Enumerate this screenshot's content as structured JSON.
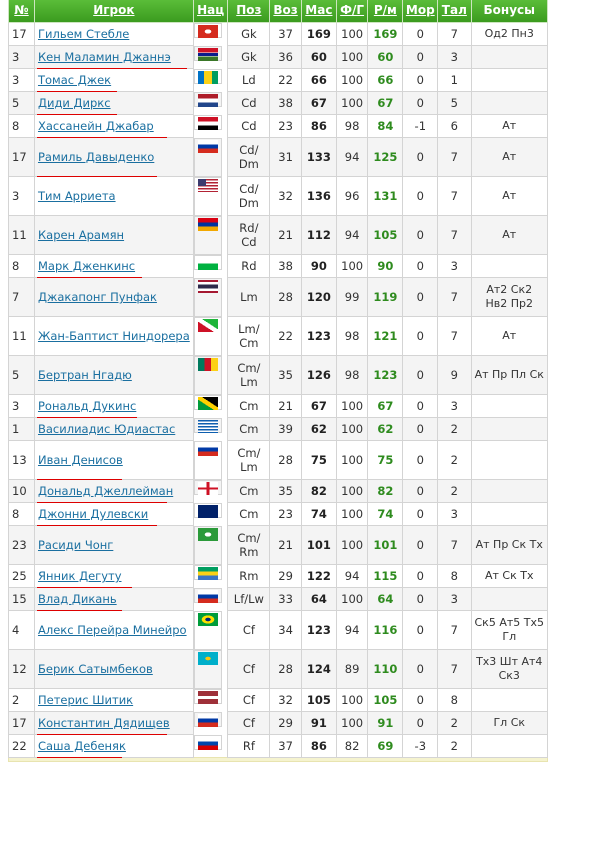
{
  "headers": [
    "№",
    "Игрок",
    "Нац",
    "Поз",
    "Воз",
    "Мас",
    "Ф/Г",
    "Р/м",
    "Мор",
    "Тал",
    "Бонусы"
  ],
  "rows": [
    {
      "num": "17",
      "name": "Гильем Стебле",
      "flag": "flag-switzerland",
      "pos": "Gk",
      "age": "37",
      "mas": "169",
      "fg": "100",
      "rm": "169",
      "mor": "0",
      "tal": "7",
      "bonus": "Од2 Пн3"
    },
    {
      "num": "3",
      "name": "Кен Маламин Джаннэ",
      "flag": "flag-gambia",
      "pos": "Gk",
      "age": "36",
      "mas": "60",
      "fg": "100",
      "rm": "60",
      "mor": "0",
      "tal": "3",
      "bonus": ""
    },
    {
      "num": "3",
      "name": "Томас Джек",
      "flag": "flag-saint-vincent",
      "pos": "Ld",
      "age": "22",
      "mas": "66",
      "fg": "100",
      "rm": "66",
      "mor": "0",
      "tal": "1",
      "bonus": ""
    },
    {
      "num": "5",
      "name": "Диди Диркс",
      "flag": "flag-netherlands",
      "pos": "Cd",
      "age": "38",
      "mas": "67",
      "fg": "100",
      "rm": "67",
      "mor": "0",
      "tal": "5",
      "bonus": ""
    },
    {
      "num": "8",
      "name": "Хассанейн Джабар",
      "flag": "flag-iraq",
      "pos": "Cd",
      "age": "23",
      "mas": "86",
      "fg": "98",
      "rm": "84",
      "mor": "-1",
      "tal": "6",
      "bonus": "Ат"
    },
    {
      "num": "17",
      "name": "Рамиль Давыденко",
      "flag": "flag-russia",
      "pos": "Cd/ Dm",
      "age": "31",
      "mas": "133",
      "fg": "94",
      "rm": "125",
      "mor": "0",
      "tal": "7",
      "bonus": "Ат"
    },
    {
      "num": "3",
      "name": "Тим Арриета",
      "flag": "flag-usa",
      "pos": "Cd/ Dm",
      "age": "32",
      "mas": "136",
      "fg": "96",
      "rm": "131",
      "mor": "0",
      "tal": "7",
      "bonus": "Ат"
    },
    {
      "num": "11",
      "name": "Карен Арамян",
      "flag": "flag-armenia",
      "pos": "Rd/ Cd",
      "age": "21",
      "mas": "112",
      "fg": "94",
      "rm": "105",
      "mor": "0",
      "tal": "7",
      "bonus": "Ат"
    },
    {
      "num": "8",
      "name": "Марк Дженкинс",
      "flag": "flag-wales",
      "pos": "Rd",
      "age": "38",
      "mas": "90",
      "fg": "100",
      "rm": "90",
      "mor": "0",
      "tal": "3",
      "bonus": ""
    },
    {
      "num": "7",
      "name": "Джакапонг Пунфак",
      "flag": "flag-thailand",
      "pos": "Lm",
      "age": "28",
      "mas": "120",
      "fg": "99",
      "rm": "119",
      "mor": "0",
      "tal": "7",
      "bonus": "Ат2 Ск2 Нв2 Пр2"
    },
    {
      "num": "11",
      "name": "Жан-Баптист Ниндорера",
      "flag": "flag-burundi",
      "pos": "Lm/ Cm",
      "age": "22",
      "mas": "123",
      "fg": "98",
      "rm": "121",
      "mor": "0",
      "tal": "7",
      "bonus": "Ат"
    },
    {
      "num": "5",
      "name": "Бертран Нгадю",
      "flag": "flag-cameroon",
      "pos": "Cm/ Lm",
      "age": "35",
      "mas": "126",
      "fg": "98",
      "rm": "123",
      "mor": "0",
      "tal": "9",
      "bonus": "Ат Пр Пл Ск"
    },
    {
      "num": "3",
      "name": "Рональд Дукинс",
      "flag": "flag-jamaica",
      "pos": "Cm",
      "age": "21",
      "mas": "67",
      "fg": "100",
      "rm": "67",
      "mor": "0",
      "tal": "3",
      "bonus": ""
    },
    {
      "num": "1",
      "name": "Василиадис Юдиастас",
      "flag": "flag-greece",
      "pos": "Cm",
      "age": "39",
      "mas": "62",
      "fg": "100",
      "rm": "62",
      "mor": "0",
      "tal": "2",
      "bonus": ""
    },
    {
      "num": "13",
      "name": "Иван Денисов",
      "flag": "flag-russia",
      "pos": "Cm/ Lm",
      "age": "28",
      "mas": "75",
      "fg": "100",
      "rm": "75",
      "mor": "0",
      "tal": "2",
      "bonus": ""
    },
    {
      "num": "10",
      "name": "Дональд Джеллейман",
      "flag": "flag-england",
      "pos": "Cm",
      "age": "35",
      "mas": "82",
      "fg": "100",
      "rm": "82",
      "mor": "0",
      "tal": "2",
      "bonus": ""
    },
    {
      "num": "8",
      "name": "Джонни Дулевски",
      "flag": "flag-australia",
      "pos": "Cm",
      "age": "23",
      "mas": "74",
      "fg": "100",
      "rm": "74",
      "mor": "0",
      "tal": "3",
      "bonus": ""
    },
    {
      "num": "23",
      "name": "Расиди Чонг",
      "flag": "flag-montserrat",
      "pos": "Cm/ Rm",
      "age": "21",
      "mas": "101",
      "fg": "100",
      "rm": "101",
      "mor": "0",
      "tal": "7",
      "bonus": "Ат Пр Ск Тх"
    },
    {
      "num": "25",
      "name": "Янник Дегуту",
      "flag": "flag-gabon",
      "pos": "Rm",
      "age": "29",
      "mas": "122",
      "fg": "94",
      "rm": "115",
      "mor": "0",
      "tal": "8",
      "bonus": "Ат Ск Тх"
    },
    {
      "num": "15",
      "name": "Влад Дикань",
      "flag": "flag-russia",
      "pos": "Lf/Lw",
      "age": "33",
      "mas": "64",
      "fg": "100",
      "rm": "64",
      "mor": "0",
      "tal": "3",
      "bonus": ""
    },
    {
      "num": "4",
      "name": "Алекс Перейра Минейро",
      "flag": "flag-brazil",
      "pos": "Cf",
      "age": "34",
      "mas": "123",
      "fg": "94",
      "rm": "116",
      "mor": "0",
      "tal": "7",
      "bonus": "Ск5 Ат5 Тх5 Гл"
    },
    {
      "num": "12",
      "name": "Берик Сатымбеков",
      "flag": "flag-kazakhstan",
      "pos": "Cf",
      "age": "28",
      "mas": "124",
      "fg": "89",
      "rm": "110",
      "mor": "0",
      "tal": "7",
      "bonus": "Тх3 Шт Ат4 Ск3"
    },
    {
      "num": "2",
      "name": "Петерис Шитик",
      "flag": "flag-latvia",
      "pos": "Cf",
      "age": "32",
      "mas": "105",
      "fg": "100",
      "rm": "105",
      "mor": "0",
      "tal": "8",
      "bonus": ""
    },
    {
      "num": "17",
      "name": "Константин Дядищев",
      "flag": "flag-russia",
      "pos": "Cf",
      "age": "29",
      "mas": "91",
      "fg": "100",
      "rm": "91",
      "mor": "0",
      "tal": "2",
      "bonus": "Гл Ск"
    },
    {
      "num": "22",
      "name": "Саша Дебеняк",
      "flag": "flag-slovenia",
      "pos": "Rf",
      "age": "37",
      "mas": "86",
      "fg": "82",
      "rm": "69",
      "mor": "-3",
      "tal": "2",
      "bonus": ""
    }
  ]
}
